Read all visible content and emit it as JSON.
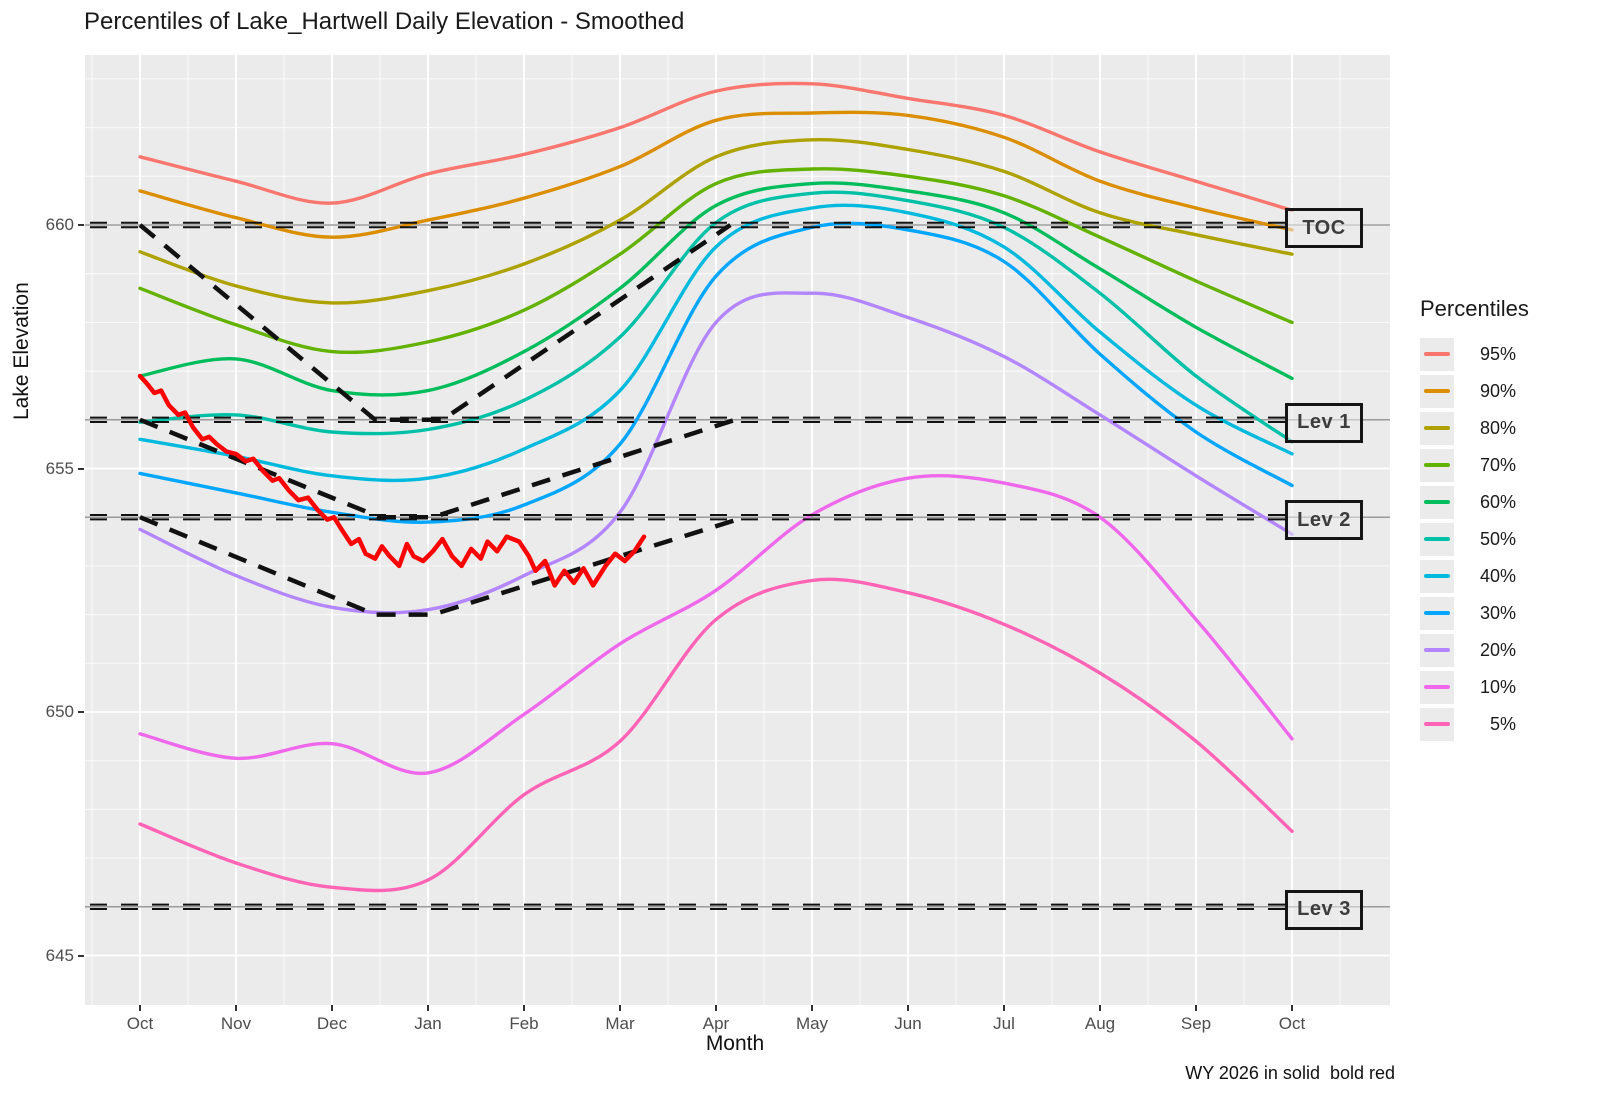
{
  "title": "Percentiles of Lake_Hartwell Daily Elevation - Smoothed",
  "caption": "WY 2026 in solid  bold red",
  "axes": {
    "x_title": "Month",
    "y_title": "Lake Elevation",
    "x_tick_labels": [
      "Oct",
      "Nov",
      "Dec",
      "Jan",
      "Feb",
      "Mar",
      "Apr",
      "May",
      "Jun",
      "Jul",
      "Aug",
      "Sep",
      "Oct"
    ],
    "y_tick_labels": [
      "660",
      "655",
      "650",
      "645"
    ],
    "y_tick_values": [
      660,
      655,
      650,
      645
    ]
  },
  "legend": {
    "title": "Percentiles",
    "entries": [
      {
        "label": "95%",
        "color": "#F8766D"
      },
      {
        "label": "90%",
        "color": "#DB8E00"
      },
      {
        "label": "80%",
        "color": "#AEA200"
      },
      {
        "label": "70%",
        "color": "#64B200"
      },
      {
        "label": "60%",
        "color": "#00BD5C"
      },
      {
        "label": "50%",
        "color": "#00C1A7"
      },
      {
        "label": "40%",
        "color": "#00BADE"
      },
      {
        "label": "30%",
        "color": "#00A6FF"
      },
      {
        "label": "20%",
        "color": "#B385FF"
      },
      {
        "label": "10%",
        "color": "#EF67EB"
      },
      {
        "label": "5%",
        "color": "#FF63B6"
      }
    ]
  },
  "colors": {
    "panel_bg": "#EBEBEB",
    "gridline": "#FFFFFF",
    "ref_line_grey": "#9A9A9A",
    "dashed_black": "#111111",
    "wy_red": "#FF0000"
  },
  "chart_data": {
    "type": "line",
    "title": "Percentiles of Lake_Hartwell Daily Elevation - Smoothed",
    "xlabel": "Month",
    "ylabel": "Lake Elevation",
    "x_categories": [
      "Oct",
      "Nov",
      "Dec",
      "Jan",
      "Feb",
      "Mar",
      "Apr",
      "May",
      "Jun",
      "Jul",
      "Aug",
      "Sep",
      "Oct"
    ],
    "ylim": [
      644,
      663.5
    ],
    "grid": true,
    "legend_position": "right",
    "series": [
      {
        "name": "95%",
        "color": "#F8766D",
        "values": [
          661.4,
          660.9,
          660.45,
          661.05,
          661.45,
          662.0,
          662.75,
          662.9,
          662.6,
          662.25,
          661.5,
          660.9,
          660.3
        ]
      },
      {
        "name": "90%",
        "color": "#DB8E00",
        "values": [
          660.7,
          660.15,
          659.75,
          660.1,
          660.55,
          661.2,
          662.15,
          662.3,
          662.25,
          661.8,
          660.9,
          660.35,
          659.9
        ]
      },
      {
        "name": "80%",
        "color": "#AEA200",
        "values": [
          659.45,
          658.75,
          658.4,
          658.65,
          659.2,
          660.1,
          661.4,
          661.75,
          661.55,
          661.1,
          660.25,
          659.8,
          659.4
        ]
      },
      {
        "name": "70%",
        "color": "#64B200",
        "values": [
          658.7,
          657.95,
          657.4,
          657.6,
          658.25,
          659.4,
          660.85,
          661.15,
          661.0,
          660.6,
          659.75,
          658.85,
          658.0
        ]
      },
      {
        "name": "60%",
        "color": "#00BD5C",
        "values": [
          656.9,
          657.25,
          656.6,
          656.6,
          657.4,
          658.7,
          660.4,
          660.85,
          660.7,
          660.25,
          659.1,
          657.9,
          656.85
        ]
      },
      {
        "name": "50%",
        "color": "#00C1A7",
        "values": [
          655.95,
          656.1,
          655.75,
          655.8,
          656.4,
          657.7,
          660.05,
          660.65,
          660.5,
          659.95,
          658.6,
          656.9,
          655.55
        ]
      },
      {
        "name": "40%",
        "color": "#00BADE",
        "values": [
          655.6,
          655.25,
          654.85,
          654.8,
          655.4,
          656.6,
          659.55,
          660.35,
          660.25,
          659.55,
          657.8,
          656.3,
          655.3
        ]
      },
      {
        "name": "30%",
        "color": "#00A6FF",
        "values": [
          654.9,
          654.5,
          654.1,
          653.9,
          654.25,
          655.5,
          658.95,
          659.95,
          659.9,
          659.25,
          657.35,
          655.75,
          654.65
        ]
      },
      {
        "name": "20%",
        "color": "#B385FF",
        "values": [
          653.75,
          652.8,
          652.15,
          652.1,
          652.8,
          654.1,
          658.0,
          658.6,
          658.1,
          657.3,
          656.1,
          654.85,
          653.65
        ]
      },
      {
        "name": "10%",
        "color": "#EF67EB",
        "values": [
          649.55,
          649.05,
          649.35,
          648.75,
          649.95,
          651.4,
          652.5,
          654.05,
          654.8,
          654.7,
          654.0,
          651.9,
          649.45
        ]
      },
      {
        "name": "5%",
        "color": "#FF63B6",
        "values": [
          647.7,
          646.9,
          646.4,
          646.55,
          648.3,
          649.4,
          651.9,
          652.7,
          652.45,
          651.8,
          650.8,
          649.4,
          647.55
        ]
      }
    ],
    "wy2026": {
      "name": "WY 2026",
      "color": "#FF0000",
      "points": [
        [
          0.0,
          656.9
        ],
        [
          0.07,
          656.75
        ],
        [
          0.15,
          656.55
        ],
        [
          0.22,
          656.6
        ],
        [
          0.3,
          656.3
        ],
        [
          0.4,
          656.1
        ],
        [
          0.47,
          656.15
        ],
        [
          0.55,
          655.85
        ],
        [
          0.65,
          655.6
        ],
        [
          0.72,
          655.65
        ],
        [
          0.8,
          655.5
        ],
        [
          0.9,
          655.35
        ],
        [
          1.0,
          655.3
        ],
        [
          1.1,
          655.15
        ],
        [
          1.18,
          655.2
        ],
        [
          1.28,
          654.95
        ],
        [
          1.38,
          654.75
        ],
        [
          1.45,
          654.8
        ],
        [
          1.55,
          654.55
        ],
        [
          1.65,
          654.35
        ],
        [
          1.75,
          654.4
        ],
        [
          1.85,
          654.15
        ],
        [
          1.95,
          653.95
        ],
        [
          2.02,
          654.0
        ],
        [
          2.1,
          653.75
        ],
        [
          2.2,
          653.45
        ],
        [
          2.28,
          653.55
        ],
        [
          2.35,
          653.25
        ],
        [
          2.45,
          653.15
        ],
        [
          2.52,
          653.4
        ],
        [
          2.6,
          653.2
        ],
        [
          2.7,
          653.0
        ],
        [
          2.78,
          653.45
        ],
        [
          2.85,
          653.2
        ],
        [
          2.95,
          653.1
        ],
        [
          3.05,
          653.3
        ],
        [
          3.15,
          653.55
        ],
        [
          3.25,
          653.2
        ],
        [
          3.35,
          653.0
        ],
        [
          3.45,
          653.35
        ],
        [
          3.55,
          653.15
        ],
        [
          3.62,
          653.5
        ],
        [
          3.72,
          653.3
        ],
        [
          3.82,
          653.6
        ],
        [
          3.95,
          653.5
        ],
        [
          4.05,
          653.2
        ],
        [
          4.12,
          652.9
        ],
        [
          4.22,
          653.1
        ],
        [
          4.32,
          652.6
        ],
        [
          4.42,
          652.9
        ],
        [
          4.52,
          652.65
        ],
        [
          4.62,
          652.95
        ],
        [
          4.72,
          652.6
        ],
        [
          4.85,
          653.0
        ],
        [
          4.95,
          653.25
        ],
        [
          5.05,
          653.1
        ],
        [
          5.15,
          653.3
        ],
        [
          5.25,
          653.6
        ]
      ]
    },
    "reference_lines": [
      {
        "label": "TOC",
        "value": 660
      },
      {
        "label": "Lev 1",
        "value": 656
      },
      {
        "label": "Lev 2",
        "value": 654
      },
      {
        "label": "Lev 3",
        "value": 646
      }
    ],
    "guide_curves": [
      {
        "name": "toc-seasonal",
        "points": [
          [
            0,
            660
          ],
          [
            2.45,
            656
          ],
          [
            3.15,
            656
          ],
          [
            6.15,
            660
          ]
        ]
      },
      {
        "name": "lev1-seasonal",
        "points": [
          [
            0,
            656
          ],
          [
            2.5,
            654
          ],
          [
            3.05,
            654
          ],
          [
            6.2,
            656
          ]
        ]
      },
      {
        "name": "lev2-seasonal",
        "points": [
          [
            0,
            654
          ],
          [
            2.45,
            652
          ],
          [
            3.05,
            652
          ],
          [
            6.3,
            654
          ]
        ]
      }
    ]
  }
}
